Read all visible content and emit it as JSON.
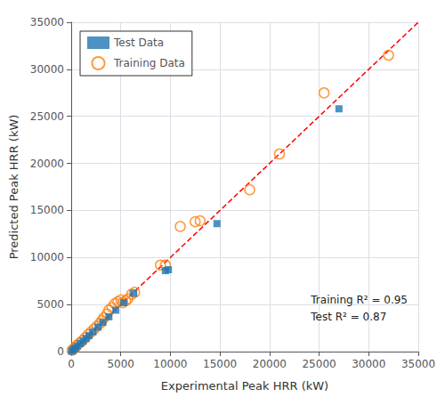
{
  "chart_data": {
    "type": "scatter",
    "xlabel": "Experimental Peak HRR (kW)",
    "ylabel": "Predicted Peak HRR (kW)",
    "xlim": [
      0,
      35000
    ],
    "ylim": [
      0,
      35000
    ],
    "xticks": [
      0,
      5000,
      10000,
      15000,
      20000,
      25000,
      30000,
      35000
    ],
    "yticks": [
      0,
      5000,
      10000,
      15000,
      20000,
      25000,
      30000,
      35000
    ],
    "grid": true,
    "legend": "upper left",
    "annotation": "Training R² = 0.95\nTest R² = 0.87",
    "series": [
      {
        "type": "line",
        "color": "red",
        "line_style": "dashed",
        "x": [
          0,
          35000
        ],
        "values": [
          0,
          35000
        ]
      },
      {
        "type": "scatter",
        "name": "Training Data",
        "color": "#ff7f0e",
        "marker": "circle_open",
        "x": [
          100,
          250,
          400,
          600,
          900,
          1100,
          1400,
          1700,
          2000,
          2300,
          2600,
          2900,
          3100,
          3300,
          3600,
          3800,
          4100,
          4400,
          4700,
          5000,
          5200,
          5500,
          5700,
          6100,
          6400,
          9000,
          9500,
          11000,
          12500,
          13000,
          18000,
          21000,
          25500,
          32000
        ],
        "values": [
          150,
          300,
          450,
          700,
          950,
          1150,
          1450,
          1800,
          2100,
          2400,
          2700,
          3000,
          3300,
          3600,
          4000,
          4400,
          4700,
          5100,
          5300,
          5500,
          5200,
          5400,
          5600,
          6100,
          6300,
          9200,
          9200,
          13300,
          13800,
          13900,
          17200,
          21000,
          27500,
          31500
        ]
      },
      {
        "type": "scatter",
        "name": "Test Data",
        "color": "#1f77b4",
        "marker": "square",
        "x": [
          50,
          200,
          400,
          600,
          900,
          1200,
          1500,
          1800,
          2200,
          2700,
          3200,
          3800,
          4500,
          5300,
          6300,
          9500,
          9800,
          14700,
          27000
        ],
        "values": [
          30,
          180,
          350,
          550,
          850,
          1100,
          1400,
          1700,
          2100,
          2600,
          3100,
          3700,
          4400,
          5200,
          6200,
          8600,
          8700,
          13600,
          25800
        ]
      }
    ]
  }
}
